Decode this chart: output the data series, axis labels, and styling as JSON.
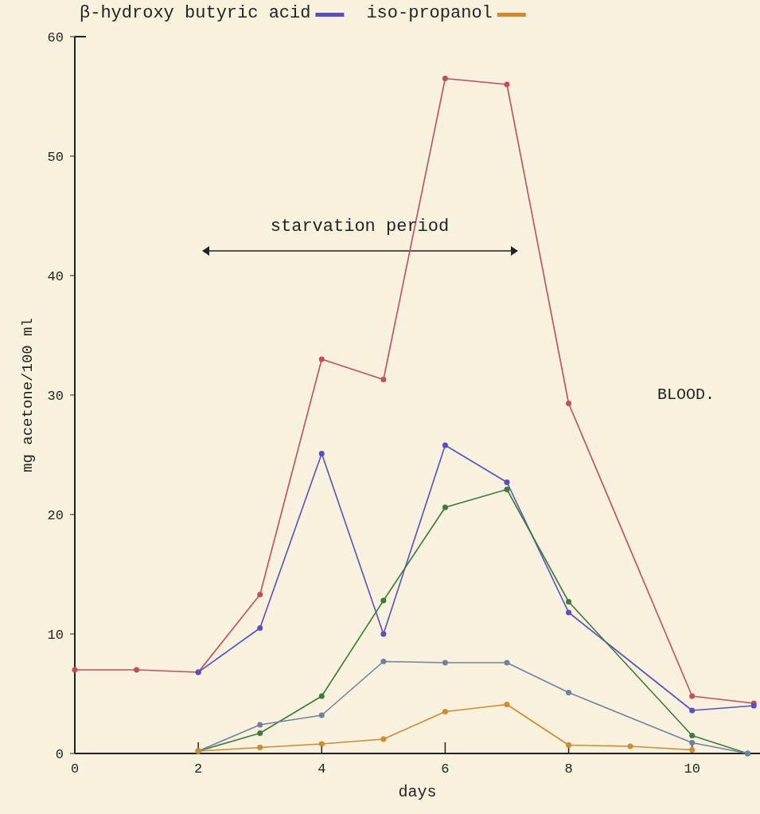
{
  "chart_data": {
    "type": "line",
    "xlabel": "days",
    "ylabel": "mg acetone/100 ml",
    "annotations": [
      "starvation period",
      "BLOOD."
    ],
    "xlim": [
      0,
      11.1
    ],
    "ylim": [
      0,
      60
    ],
    "xticks": [
      0,
      2,
      4,
      6,
      8,
      10
    ],
    "yticks": [
      0,
      10,
      20,
      30,
      40,
      50,
      60
    ],
    "grid": false,
    "legend": "top",
    "marker": "circle",
    "line_style": "solid",
    "series": [
      {
        "color": "#c0505a",
        "x": [
          0,
          1,
          2,
          3,
          4,
          5,
          6,
          7,
          8,
          10,
          11
        ],
        "values": [
          7.0,
          7.0,
          6.8,
          13.3,
          33.0,
          31.3,
          56.5,
          56.0,
          29.3,
          4.8,
          4.2
        ]
      },
      {
        "name": "β-hydroxy butyric acid",
        "color": "#5a4fc0",
        "x": [
          2,
          3,
          4,
          5,
          6,
          7,
          8,
          10,
          11
        ],
        "values": [
          6.8,
          10.5,
          25.1,
          10.0,
          25.8,
          22.7,
          11.8,
          3.6,
          4.0
        ]
      },
      {
        "color": "#3e7a3e",
        "x": [
          2,
          3,
          4,
          5,
          6,
          7,
          8,
          10,
          10.9
        ],
        "values": [
          0.2,
          1.7,
          4.8,
          12.8,
          20.6,
          22.1,
          12.7,
          1.5,
          0
        ]
      },
      {
        "color": "#7080a0",
        "x": [
          2,
          3,
          4,
          5,
          6,
          7,
          8,
          10,
          10.9
        ],
        "values": [
          0.2,
          2.4,
          3.2,
          7.7,
          7.6,
          7.6,
          5.1,
          0.9,
          0
        ]
      },
      {
        "name": "iso-propanol",
        "color": "#d08a30",
        "x": [
          2,
          3,
          4,
          5,
          6,
          7,
          8,
          9,
          10
        ],
        "values": [
          0.2,
          0.5,
          0.8,
          1.2,
          3.5,
          4.1,
          0.7,
          0.6,
          0.3
        ]
      }
    ]
  }
}
